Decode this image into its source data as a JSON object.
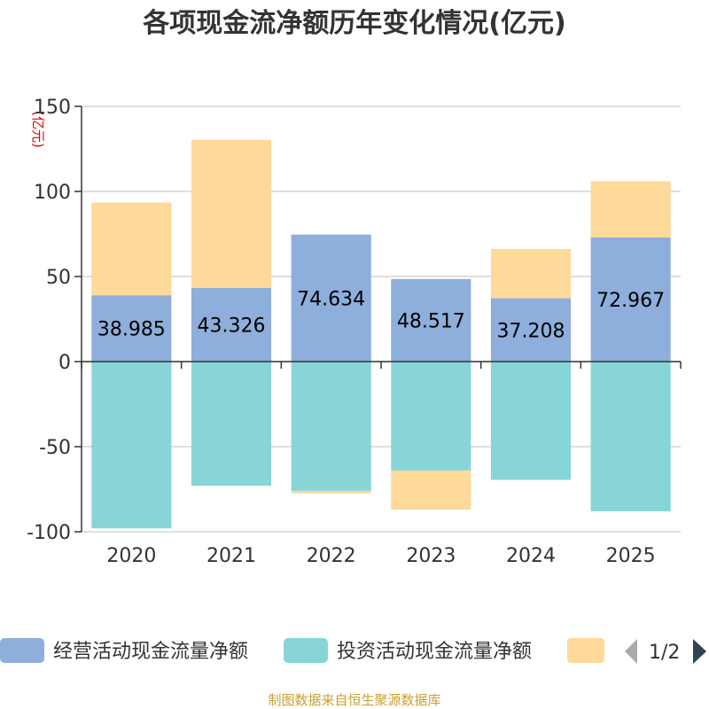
{
  "chart_data": {
    "type": "bar",
    "stacked": true,
    "title": "各项现金流净额历年变化情况(亿元)",
    "ylabel": "(亿元)",
    "categories": [
      "2020",
      "2021",
      "2022",
      "2023",
      "2024",
      "2025"
    ],
    "ylim": [
      -100,
      150
    ],
    "yticks": [
      150,
      100,
      50,
      0,
      -50,
      -100
    ],
    "series": [
      {
        "name": "经营活动现金流量净额",
        "color": "#8eaedb",
        "values": [
          38.985,
          43.326,
          74.634,
          48.517,
          37.208,
          72.967
        ],
        "labels": [
          "38.985",
          "43.326",
          "74.634",
          "48.517",
          "37.208",
          "72.967"
        ]
      },
      {
        "name": "投资活动现金流量净额",
        "color": "#88d5d8",
        "values": [
          -98.0,
          -73.0,
          -76.0,
          -64.0,
          -69.5,
          -88.0
        ]
      },
      {
        "name": "",
        "color": "#fed99a",
        "values": [
          54.5,
          87.0,
          -1.5,
          -23.0,
          29.0,
          33.0
        ]
      }
    ],
    "legend": {
      "position": "bottom",
      "page": "1/2"
    }
  },
  "source_note": "制图数据来自恒生聚源数据库"
}
